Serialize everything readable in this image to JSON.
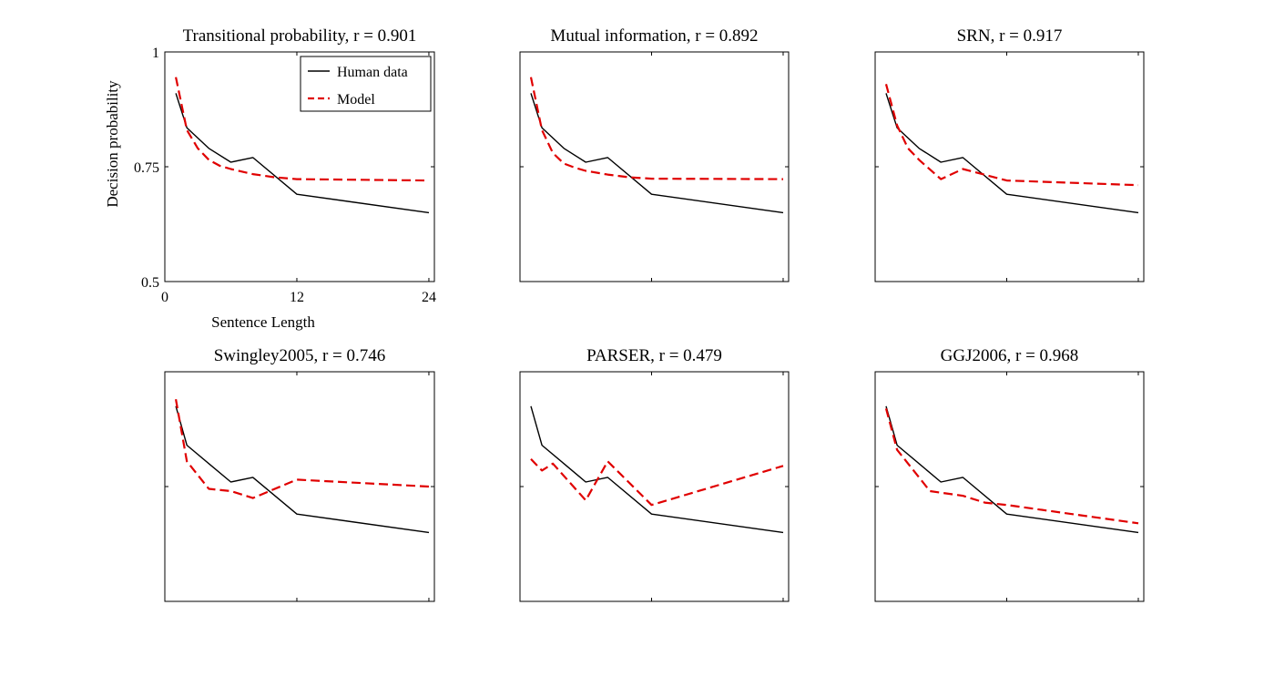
{
  "figure": {
    "legend": {
      "placement": "top-right",
      "panel": 0,
      "entries": [
        "Human data",
        "Model"
      ]
    },
    "colors": {
      "human": "#000000",
      "model": "#e00000",
      "axes": "#000000",
      "background": "#ffffff"
    }
  },
  "chart_data": [
    {
      "type": "line",
      "title": "Transitional probability, r = 0.901",
      "xlabel": "Sentence Length",
      "ylabel": "Decision probability",
      "xlim": [
        0,
        24.5
      ],
      "ylim": [
        0.5,
        1
      ],
      "xticks": [
        0,
        12,
        24
      ],
      "yticks": [
        0.5,
        0.75,
        1
      ],
      "xtick_labels": [
        "0",
        "12",
        "24"
      ],
      "ytick_labels": [
        "0.5",
        "0.75",
        "1"
      ],
      "grid": false,
      "legend_placement": "top-right",
      "series": [
        {
          "name": "Human data",
          "style": "solid",
          "color": "#000000",
          "x": [
            1,
            2,
            4,
            6,
            8,
            12,
            24
          ],
          "y": [
            0.91,
            0.835,
            0.79,
            0.76,
            0.77,
            0.69,
            0.65
          ]
        },
        {
          "name": "Model",
          "style": "dashed",
          "color": "#e00000",
          "x": [
            1,
            2,
            3,
            4,
            5,
            6,
            8,
            10,
            12,
            24
          ],
          "y": [
            0.945,
            0.83,
            0.79,
            0.765,
            0.752,
            0.745,
            0.734,
            0.727,
            0.723,
            0.72
          ]
        }
      ]
    },
    {
      "type": "line",
      "title": "Mutual information, r = 0.892",
      "xlabel": "",
      "ylabel": "",
      "xlim": [
        0,
        24.5
      ],
      "ylim": [
        0.5,
        1
      ],
      "xticks": [
        0,
        12,
        24
      ],
      "yticks": [
        0.5,
        0.75,
        1
      ],
      "xtick_labels": [],
      "ytick_labels": [],
      "grid": false,
      "series": [
        {
          "name": "Human data",
          "style": "solid",
          "color": "#000000",
          "x": [
            1,
            2,
            4,
            6,
            8,
            12,
            24
          ],
          "y": [
            0.91,
            0.835,
            0.79,
            0.76,
            0.77,
            0.69,
            0.65
          ]
        },
        {
          "name": "Model",
          "style": "dashed",
          "color": "#e00000",
          "x": [
            1,
            2,
            3,
            4,
            5,
            6,
            8,
            10,
            12,
            24
          ],
          "y": [
            0.945,
            0.83,
            0.78,
            0.757,
            0.748,
            0.741,
            0.733,
            0.727,
            0.724,
            0.723
          ]
        }
      ]
    },
    {
      "type": "line",
      "title": "SRN, r = 0.917",
      "xlabel": "",
      "ylabel": "",
      "xlim": [
        0,
        24.5
      ],
      "ylim": [
        0.5,
        1
      ],
      "xticks": [
        0,
        12,
        24
      ],
      "yticks": [
        0.5,
        0.75,
        1
      ],
      "xtick_labels": [],
      "ytick_labels": [],
      "grid": false,
      "series": [
        {
          "name": "Human data",
          "style": "solid",
          "color": "#000000",
          "x": [
            1,
            2,
            4,
            6,
            8,
            12,
            24
          ],
          "y": [
            0.91,
            0.835,
            0.79,
            0.76,
            0.77,
            0.69,
            0.65
          ]
        },
        {
          "name": "Model",
          "style": "dashed",
          "color": "#e00000",
          "x": [
            1,
            2,
            3,
            4,
            6,
            8,
            12,
            24
          ],
          "y": [
            0.93,
            0.84,
            0.79,
            0.765,
            0.723,
            0.745,
            0.72,
            0.71
          ]
        }
      ]
    },
    {
      "type": "line",
      "title": "Swingley2005, r = 0.746",
      "xlabel": "",
      "ylabel": "",
      "xlim": [
        0,
        24.5
      ],
      "ylim": [
        0.5,
        1
      ],
      "xticks": [
        0,
        12,
        24
      ],
      "yticks": [
        0.5,
        0.75,
        1
      ],
      "xtick_labels": [],
      "ytick_labels": [],
      "grid": false,
      "series": [
        {
          "name": "Human data",
          "style": "solid",
          "color": "#000000",
          "x": [
            1,
            2,
            4,
            6,
            8,
            12,
            24
          ],
          "y": [
            0.925,
            0.84,
            0.8,
            0.76,
            0.77,
            0.69,
            0.65
          ]
        },
        {
          "name": "Model",
          "style": "dashed",
          "color": "#e00000",
          "x": [
            1,
            2,
            4,
            6,
            8,
            12,
            24
          ],
          "y": [
            0.94,
            0.805,
            0.745,
            0.74,
            0.725,
            0.765,
            0.75
          ]
        }
      ]
    },
    {
      "type": "line",
      "title": "PARSER, r = 0.479",
      "xlabel": "",
      "ylabel": "",
      "xlim": [
        0,
        24.5
      ],
      "ylim": [
        0.5,
        1
      ],
      "xticks": [
        0,
        12,
        24
      ],
      "yticks": [
        0.5,
        0.75,
        1
      ],
      "xtick_labels": [],
      "ytick_labels": [],
      "grid": false,
      "series": [
        {
          "name": "Human data",
          "style": "solid",
          "color": "#000000",
          "x": [
            1,
            2,
            4,
            6,
            8,
            12,
            24
          ],
          "y": [
            0.925,
            0.84,
            0.8,
            0.76,
            0.77,
            0.69,
            0.65
          ]
        },
        {
          "name": "Model",
          "style": "dashed",
          "color": "#e00000",
          "x": [
            1,
            2,
            3,
            6,
            8,
            12,
            24
          ],
          "y": [
            0.81,
            0.785,
            0.8,
            0.72,
            0.805,
            0.71,
            0.795
          ]
        }
      ]
    },
    {
      "type": "line",
      "title": "GGJ2006, r = 0.968",
      "xlabel": "",
      "ylabel": "",
      "xlim": [
        0,
        24.5
      ],
      "ylim": [
        0.5,
        1
      ],
      "xticks": [
        0,
        12,
        24
      ],
      "yticks": [
        0.5,
        0.75,
        1
      ],
      "xtick_labels": [],
      "ytick_labels": [],
      "grid": false,
      "series": [
        {
          "name": "Human data",
          "style": "solid",
          "color": "#000000",
          "x": [
            1,
            2,
            4,
            6,
            8,
            12,
            24
          ],
          "y": [
            0.925,
            0.84,
            0.8,
            0.76,
            0.77,
            0.69,
            0.65
          ]
        },
        {
          "name": "Model",
          "style": "dashed",
          "color": "#e00000",
          "x": [
            1,
            2,
            4,
            5,
            8,
            10,
            12,
            24
          ],
          "y": [
            0.92,
            0.83,
            0.77,
            0.74,
            0.73,
            0.715,
            0.71,
            0.67
          ]
        }
      ]
    }
  ]
}
